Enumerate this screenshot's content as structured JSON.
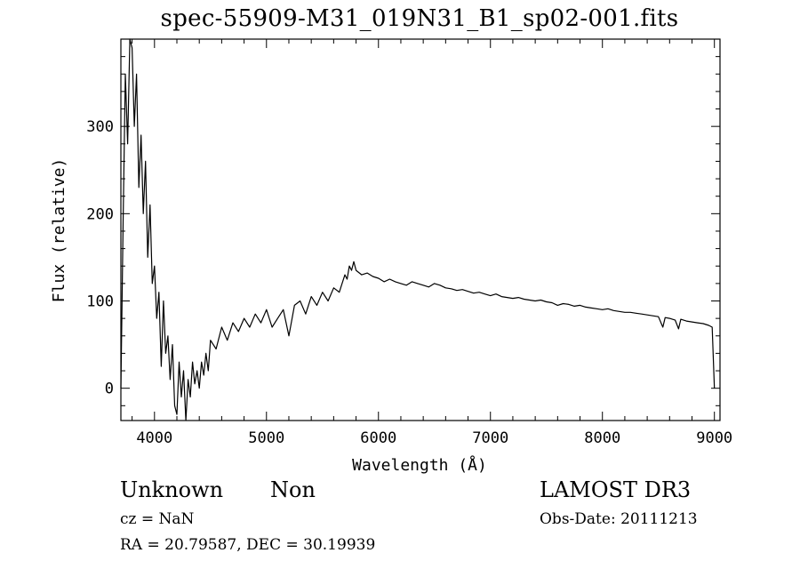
{
  "chart_data": {
    "type": "line",
    "title": "spec-55909-M31_019N31_B1_sp02-001.fits",
    "xlabel": "Wavelength (Å)",
    "ylabel": "Flux (relative)",
    "xlim": [
      3700,
      9050
    ],
    "ylim": [
      -37,
      400
    ],
    "xticks": [
      4000,
      5000,
      6000,
      7000,
      8000,
      9000
    ],
    "yticks": [
      0,
      100,
      200,
      300
    ],
    "grid": false,
    "series": [
      {
        "x": [
          3700,
          3720,
          3740,
          3760,
          3780,
          3800,
          3820,
          3840,
          3860,
          3880,
          3900,
          3920,
          3940,
          3960,
          3980,
          4000,
          4020,
          4040,
          4060,
          4080,
          4100,
          4120,
          4140,
          4160,
          4180,
          4200,
          4220,
          4240,
          4260,
          4280,
          4300,
          4320,
          4340,
          4360,
          4380,
          4400,
          4420,
          4440,
          4460,
          4480,
          4500,
          4550,
          4600,
          4650,
          4700,
          4750,
          4800,
          4850,
          4900,
          4950,
          5000,
          5050,
          5100,
          5150,
          5200,
          5250,
          5300,
          5350,
          5400,
          5450,
          5500,
          5550,
          5600,
          5650,
          5700,
          5720,
          5740,
          5760,
          5780,
          5800,
          5850,
          5900,
          5950,
          6000,
          6050,
          6100,
          6150,
          6200,
          6250,
          6300,
          6350,
          6400,
          6450,
          6500,
          6550,
          6600,
          6650,
          6700,
          6750,
          6800,
          6850,
          6900,
          6950,
          7000,
          7050,
          7100,
          7150,
          7200,
          7250,
          7300,
          7350,
          7400,
          7450,
          7500,
          7550,
          7600,
          7650,
          7700,
          7750,
          7800,
          7850,
          7900,
          7950,
          8000,
          8050,
          8100,
          8150,
          8200,
          8250,
          8300,
          8350,
          8400,
          8450,
          8500,
          8540,
          8560,
          8600,
          8650,
          8680,
          8700,
          8750,
          8800,
          8850,
          8900,
          8950,
          8980,
          9000
        ],
        "y": [
          0,
          190,
          360,
          280,
          400,
          390,
          300,
          360,
          230,
          290,
          200,
          260,
          150,
          210,
          120,
          140,
          80,
          110,
          25,
          100,
          40,
          60,
          10,
          50,
          -20,
          -30,
          30,
          -10,
          20,
          -37,
          10,
          -10,
          30,
          5,
          20,
          0,
          30,
          15,
          40,
          20,
          55,
          45,
          70,
          55,
          75,
          65,
          80,
          70,
          85,
          75,
          90,
          70,
          80,
          90,
          60,
          95,
          100,
          85,
          105,
          95,
          110,
          100,
          115,
          110,
          130,
          125,
          140,
          135,
          145,
          135,
          130,
          132,
          128,
          126,
          122,
          125,
          122,
          120,
          118,
          122,
          120,
          118,
          116,
          120,
          118,
          115,
          114,
          112,
          113,
          111,
          109,
          110,
          108,
          106,
          108,
          105,
          104,
          103,
          104,
          102,
          101,
          100,
          101,
          99,
          98,
          95,
          97,
          96,
          94,
          95,
          93,
          92,
          91,
          90,
          91,
          89,
          88,
          87,
          87,
          86,
          85,
          84,
          83,
          82,
          70,
          81,
          80,
          78,
          68,
          79,
          77,
          76,
          75,
          74,
          72,
          70,
          0
        ]
      }
    ]
  },
  "annotations": {
    "object_class": "Unknown",
    "object_subclass": "Non",
    "survey": "LAMOST DR3",
    "cz": "cz = NaN",
    "obs_date": "Obs-Date: 20111213",
    "coords": "RA =  20.79587, DEC =  30.19939"
  }
}
